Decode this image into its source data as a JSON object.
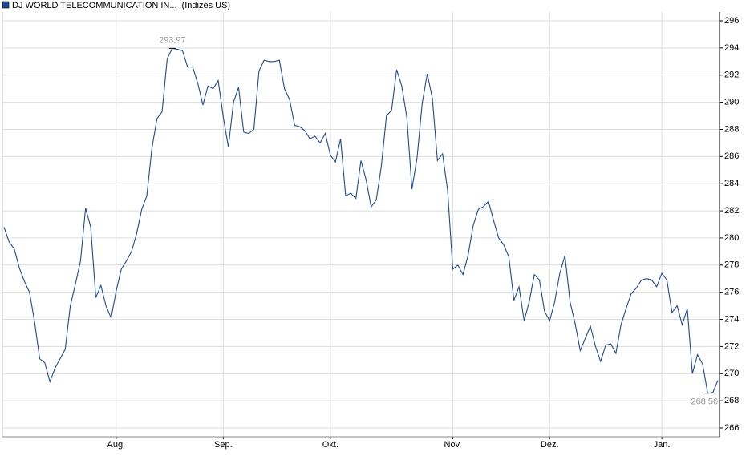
{
  "chart_data": {
    "type": "line",
    "title": "(Indizes US)",
    "categories": [
      null,
      null,
      null,
      null,
      null,
      null,
      null,
      null,
      null,
      null,
      null,
      null,
      null,
      null,
      null,
      null,
      null,
      null,
      null,
      null,
      null,
      null,
      "Aug.",
      null,
      null,
      null,
      null,
      null,
      null,
      null,
      null,
      null,
      null,
      null,
      null,
      null,
      null,
      null,
      null,
      null,
      null,
      null,
      null,
      "Sep.",
      null,
      null,
      null,
      null,
      null,
      null,
      null,
      null,
      null,
      null,
      null,
      null,
      null,
      null,
      null,
      null,
      null,
      null,
      null,
      null,
      "Okt.",
      null,
      null,
      null,
      null,
      null,
      null,
      null,
      null,
      null,
      null,
      null,
      null,
      null,
      null,
      null,
      null,
      null,
      null,
      null,
      null,
      null,
      null,
      null,
      "Nov.",
      null,
      null,
      null,
      null,
      null,
      null,
      null,
      null,
      null,
      null,
      null,
      null,
      null,
      null,
      null,
      null,
      null,
      null,
      "Dez.",
      null,
      null,
      null,
      null,
      null,
      null,
      null,
      null,
      null,
      null,
      null,
      null,
      null,
      null,
      null,
      null,
      null,
      null,
      null,
      null,
      null,
      "Jan.",
      null,
      null,
      null,
      null,
      null,
      null,
      null,
      null,
      null,
      null,
      null
    ],
    "series": [
      {
        "name": "DJ WORLD TELECOMMUNICATION IN...",
        "color": "#1f4a94",
        "values": [
          280.8,
          279.7,
          279.2,
          277.8,
          276.8,
          276.0,
          273.8,
          271.1,
          270.8,
          269.4,
          270.4,
          271.1,
          271.8,
          275.0,
          276.6,
          278.3,
          282.2,
          280.8,
          275.6,
          276.5,
          275.0,
          274.1,
          276.1,
          277.7,
          278.3,
          279.0,
          280.3,
          282.1,
          283.1,
          286.6,
          288.8,
          289.3,
          293.2,
          293.97,
          293.9,
          293.8,
          292.6,
          292.6,
          291.4,
          289.8,
          291.2,
          291.0,
          291.6,
          288.9,
          286.7,
          290.0,
          291.1,
          287.8,
          287.7,
          288.0,
          292.3,
          293.1,
          293.0,
          293.0,
          293.1,
          291.0,
          290.2,
          288.3,
          288.2,
          287.9,
          287.3,
          287.5,
          287.0,
          287.7,
          286.1,
          285.6,
          287.3,
          283.1,
          283.3,
          282.9,
          285.7,
          284.3,
          282.3,
          282.8,
          285.3,
          289.0,
          289.4,
          292.4,
          291.2,
          288.9,
          283.6,
          285.9,
          289.9,
          292.1,
          290.3,
          285.7,
          286.2,
          283.5,
          277.7,
          278.0,
          277.3,
          278.7,
          280.9,
          282.1,
          282.3,
          282.7,
          281.3,
          280.0,
          279.5,
          278.6,
          275.4,
          276.4,
          273.9,
          275.3,
          277.3,
          276.9,
          274.6,
          273.9,
          275.3,
          277.4,
          278.7,
          275.3,
          273.7,
          271.7,
          272.6,
          273.5,
          272.0,
          270.9,
          272.1,
          272.2,
          271.5,
          273.6,
          274.8,
          275.9,
          276.3,
          276.9,
          277.0,
          276.9,
          276.4,
          277.4,
          276.9,
          274.5,
          275.0,
          273.6,
          274.8,
          270.0,
          271.4,
          270.7,
          268.56,
          268.6,
          269.5
        ],
        "value_labels": [
          null,
          null,
          null,
          null,
          null,
          null,
          null,
          null,
          null,
          null,
          null,
          null,
          null,
          null,
          null,
          null,
          null,
          null,
          null,
          null,
          null,
          null,
          null,
          null,
          null,
          null,
          null,
          null,
          null,
          null,
          null,
          null,
          null,
          "293,97",
          null,
          null,
          null,
          null,
          null,
          null,
          null,
          null,
          null,
          null,
          null,
          null,
          null,
          null,
          null,
          null,
          null,
          null,
          null,
          null,
          null,
          null,
          null,
          null,
          null,
          null,
          null,
          null,
          null,
          null,
          null,
          null,
          null,
          null,
          null,
          null,
          null,
          null,
          null,
          null,
          null,
          null,
          null,
          null,
          null,
          null,
          null,
          null,
          null,
          null,
          null,
          null,
          null,
          null,
          null,
          null,
          null,
          null,
          null,
          null,
          null,
          null,
          null,
          null,
          null,
          null,
          null,
          null,
          null,
          null,
          null,
          null,
          null,
          null,
          null,
          null,
          null,
          null,
          null,
          null,
          null,
          null,
          null,
          null,
          null,
          null,
          null,
          null,
          null,
          null,
          null,
          null,
          null,
          null,
          null,
          null,
          null,
          null,
          null,
          null,
          null,
          null,
          null,
          null,
          "268,56",
          null,
          null
        ]
      }
    ],
    "ylim": [
      265.35,
      296.65
    ],
    "yticks": [
      266,
      268,
      270,
      272,
      274,
      276,
      278,
      280,
      282,
      284,
      286,
      288,
      290,
      292,
      294,
      296
    ],
    "grid": true
  }
}
